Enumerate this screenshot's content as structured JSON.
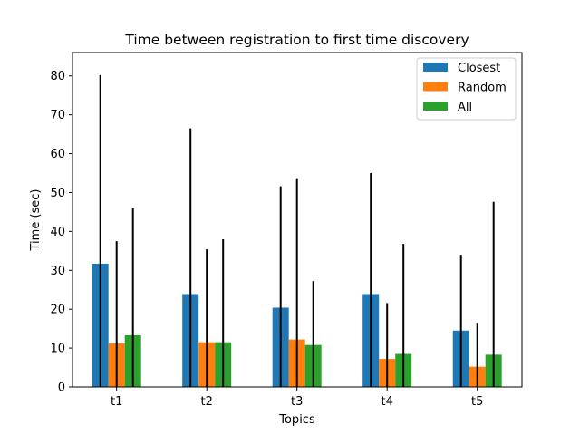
{
  "chart_data": {
    "type": "bar",
    "title": "Time between registration to first time discovery",
    "xlabel": "Topics",
    "ylabel": "Time (sec)",
    "categories": [
      "t1",
      "t2",
      "t3",
      "t4",
      "t5"
    ],
    "ylim": [
      0,
      86
    ],
    "yticks": [
      0,
      10,
      20,
      30,
      40,
      50,
      60,
      70,
      80
    ],
    "grid": false,
    "legend_position": "top-right",
    "series": [
      {
        "name": "Closest",
        "color": "#1f77b4",
        "values": [
          31.7,
          23.9,
          20.4,
          23.9,
          14.5
        ],
        "error_upper": [
          80.2,
          66.5,
          51.6,
          55.0,
          34.0
        ]
      },
      {
        "name": "Random",
        "color": "#ff7f0e",
        "values": [
          11.2,
          11.5,
          12.2,
          7.2,
          5.2
        ],
        "error_upper": [
          37.5,
          35.4,
          53.7,
          21.6,
          16.5
        ]
      },
      {
        "name": "All",
        "color": "#2ca02c",
        "values": [
          13.3,
          11.5,
          10.8,
          8.5,
          8.3
        ],
        "error_upper": [
          46.0,
          38.0,
          27.2,
          36.8,
          47.6
        ]
      }
    ]
  }
}
